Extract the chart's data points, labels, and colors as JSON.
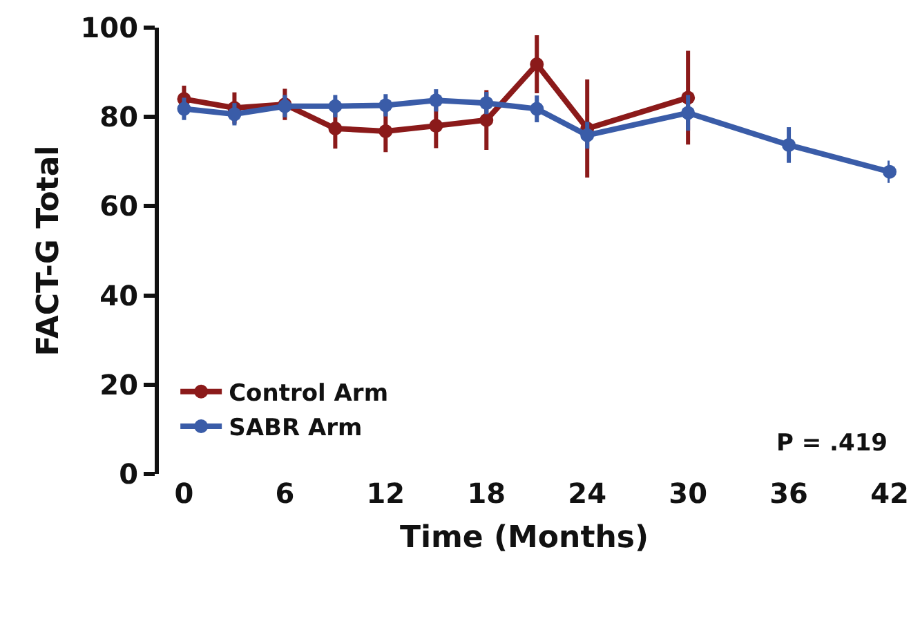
{
  "chart_data": {
    "type": "line",
    "xlabel": "Time (Months)",
    "ylabel": "FACT-G Total",
    "xlim": [
      -1.5,
      42
    ],
    "xticks": [
      0,
      6,
      12,
      18,
      24,
      30,
      36,
      42
    ],
    "ylim": [
      0,
      100
    ],
    "yticks": [
      0,
      20,
      40,
      60,
      80,
      100
    ],
    "grid": false,
    "legend": "bottom left",
    "marker": "circle",
    "line_style": "solid",
    "annotations": [
      "P = .419"
    ],
    "series": [
      {
        "name": "Control Arm",
        "color": "#8b1a1a",
        "x": [
          0,
          3,
          6,
          9,
          12,
          15,
          18,
          21,
          24,
          30
        ],
        "values": [
          84,
          82,
          82.8,
          77.4,
          76.8,
          78,
          79.3,
          91.8,
          77.4,
          84.3
        ],
        "errors": [
          3,
          3.5,
          3.5,
          4.5,
          4.7,
          5,
          6.7,
          6.5,
          11,
          10.5
        ]
      },
      {
        "name": "SABR Arm",
        "color": "#3a5ca8",
        "x": [
          0,
          3,
          6,
          9,
          12,
          15,
          18,
          21,
          24,
          30,
          36,
          42
        ],
        "values": [
          81.8,
          80.6,
          82.4,
          82.4,
          82.6,
          83.7,
          83.1,
          81.8,
          75.9,
          80.9,
          73.7,
          67.7
        ],
        "errors": [
          2.5,
          2.5,
          2.5,
          2.5,
          2.5,
          2.5,
          2.5,
          3,
          3,
          4,
          4,
          2.5
        ]
      }
    ]
  }
}
